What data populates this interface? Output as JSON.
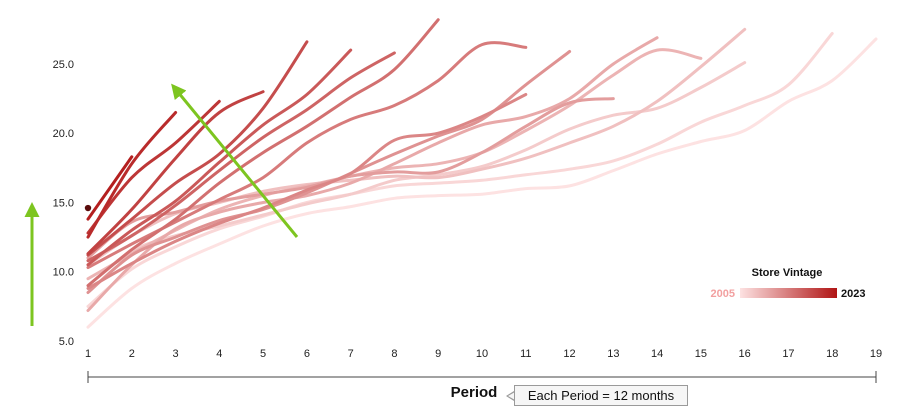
{
  "chart_data": {
    "type": "line",
    "title": "",
    "xlabel": "Period",
    "ylabel": "",
    "x_ticks": [
      1,
      2,
      3,
      4,
      5,
      6,
      7,
      8,
      9,
      10,
      11,
      12,
      13,
      14,
      15,
      16,
      17,
      18,
      19
    ],
    "y_ticks": [
      "5.0",
      "10.0",
      "15.0",
      "20.0",
      "25.0"
    ],
    "xlim": [
      1,
      19
    ],
    "ylim": [
      5,
      28.5
    ],
    "grid": false,
    "legend": {
      "title": "Store Vintage",
      "min_label": "2005",
      "max_label": "2023",
      "position": "right",
      "color_min": "#fde2e2",
      "color_max": "#b01414"
    },
    "annotation_note": "Each Period = 12 months",
    "arrow_color": "#7dc520",
    "series": [
      {
        "vintage": 2005,
        "values": [
          6.0,
          8.8,
          10.6,
          12.0,
          13.3,
          14.2,
          14.7,
          15.3,
          15.5,
          15.6,
          16.0,
          16.2,
          17.3,
          18.5,
          19.4,
          20.2,
          22.3,
          23.8,
          26.8
        ]
      },
      {
        "vintage": 2006,
        "values": [
          7.5,
          10.2,
          11.8,
          13.1,
          14.0,
          15.0,
          15.6,
          16.2,
          16.4,
          16.6,
          17.0,
          17.4,
          18.0,
          19.2,
          20.8,
          22.0,
          23.5,
          27.2
        ]
      },
      {
        "vintage": 2007,
        "values": [
          9.0,
          11.5,
          12.6,
          13.3,
          14.1,
          14.9,
          15.6,
          16.6,
          17.0,
          17.6,
          18.8,
          20.3,
          21.3,
          21.8,
          23.3,
          25.1
        ]
      },
      {
        "vintage": 2008,
        "values": [
          10.5,
          12.6,
          14.2,
          15.0,
          15.8,
          16.3,
          16.6,
          16.9,
          16.8,
          17.4,
          18.2,
          19.3,
          20.5,
          22.3,
          24.8,
          27.5
        ]
      },
      {
        "vintage": 2009,
        "values": [
          9.5,
          11.3,
          13.0,
          14.5,
          15.5,
          16.2,
          16.9,
          17.5,
          17.8,
          18.6,
          20.2,
          22.0,
          24.2,
          26.0,
          25.4
        ]
      },
      {
        "vintage": 2010,
        "values": [
          7.2,
          10.5,
          13.1,
          14.3,
          15.0,
          15.5,
          16.4,
          17.8,
          19.3,
          20.6,
          21.2,
          22.5,
          25.0,
          26.9
        ]
      },
      {
        "vintage": 2011,
        "values": [
          11.0,
          13.6,
          14.3,
          15.1,
          15.6,
          16.1,
          16.9,
          17.2,
          17.2,
          18.6,
          20.5,
          22.2,
          22.5
        ]
      },
      {
        "vintage": 2012,
        "values": [
          8.5,
          11.2,
          12.5,
          13.7,
          14.5,
          15.7,
          17.1,
          18.5,
          19.8,
          21.0,
          23.5,
          25.9
        ]
      },
      {
        "vintage": 2013,
        "values": [
          8.8,
          10.6,
          12.2,
          13.5,
          14.6,
          15.9,
          17.1,
          19.5,
          20.0,
          21.2,
          22.8
        ]
      },
      {
        "vintage": 2014,
        "values": [
          10.3,
          12.0,
          13.6,
          15.2,
          16.8,
          19.3,
          21.0,
          22.0,
          23.8,
          26.4,
          26.2
        ]
      },
      {
        "vintage": 2015,
        "values": [
          9.0,
          11.6,
          13.8,
          16.4,
          18.6,
          20.5,
          22.6,
          24.6,
          28.2
        ]
      },
      {
        "vintage": 2016,
        "values": [
          10.8,
          12.6,
          14.8,
          17.3,
          19.7,
          21.7,
          24.0,
          25.8
        ]
      },
      {
        "vintage": 2017,
        "values": [
          10.5,
          13.0,
          15.1,
          17.9,
          20.6,
          22.8,
          26.0
        ]
      },
      {
        "vintage": 2018,
        "values": [
          11.2,
          13.8,
          16.4,
          18.5,
          21.8,
          26.6
        ]
      },
      {
        "vintage": 2019,
        "values": [
          11.3,
          14.5,
          18.2,
          21.5,
          23.0
        ]
      },
      {
        "vintage": 2020,
        "values": [
          12.8,
          16.8,
          19.3,
          22.3
        ]
      },
      {
        "vintage": 2021,
        "values": [
          12.5,
          17.8,
          21.5
        ]
      },
      {
        "vintage": 2022,
        "values": [
          13.8,
          18.3
        ]
      },
      {
        "vintage": 2023,
        "values": [
          14.6
        ]
      }
    ]
  }
}
